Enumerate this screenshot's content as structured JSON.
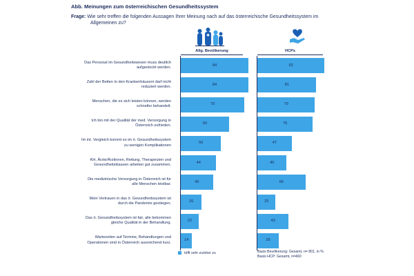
{
  "header": {
    "title": "Abb. Meinungen zum österreichischen Gesundheitssystem",
    "question_label": "Frage:",
    "question_line1": "Wie sehr treffen die folgenden Aussagen Ihrer Meinung nach auf das österreichische Gesundheitssystem im",
    "question_line2": "Allgemeinen zu?"
  },
  "chart_data": {
    "type": "bar",
    "orientation": "horizontal",
    "categories": [
      "Das Personal im Gesundheitswesen muss deutlich aufgestockt werden.",
      "Zahl der Betten in den Krankenhäusern darf nicht reduziert werden.",
      "Menschen, die es sich leisten können, werden schneller behandelt.",
      "Ich bin mit der Qualität der med. Versorgung in Österreich zufrieden.",
      "Im int. Vergleich kommt es im ö. Gesundheitssystem zu wenigen Komplikationen",
      "KH, Ärzte/Ärztinnen, Rettung, Therapeuten und Gesundheitsklassen arbeiten gut zusammen.",
      "Die medizinische Versorgung in Österreich ist für alle Menschen leistbar.",
      "Mein Vertrauen in das ö. Gesundheitssystem ist durch die Pandemie gestiegen.",
      "Das ö. Gesundheitssystem ist fair, alle bekommen gleiche Qualität in der Behandlung.",
      "Wartezeiten auf Termine, Behandlungen und Operationen sind in Österreich ausreichend kurz."
    ],
    "category_lines": [
      [
        "Das Personal im Gesundheitswesen muss deutlich",
        "aufgestockt werden."
      ],
      [
        "Zahl der Betten in den Krankenhäusern darf nicht",
        "reduziert werden."
      ],
      [
        "Menschen, die es sich leisten können, werden",
        "schneller behandelt."
      ],
      [
        "Ich bin mit der Qualität der med. Versorgung in",
        "Österreich zufrieden."
      ],
      [
        "Im int. Vergleich kommt es im ö. Gesundheitssystem",
        "zu wenigen Komplikationen"
      ],
      [
        "KH, Ärzte/Ärztinnen, Rettung, Therapeuten und",
        "Gesundheitsklassen arbeiten gut zusammen."
      ],
      [
        "Die medizinische Versorgung in Österreich ist für",
        "alle Menschen leistbar."
      ],
      [
        "Mein Vertrauen in das ö. Gesundheitssystem ist",
        "durch die Pandemie gestiegen."
      ],
      [
        "Das ö. Gesundheitssystem ist fair, alle bekommen",
        "gleiche Qualität in der Behandlung."
      ],
      [
        "Wartezeiten auf Termine, Behandlungen und",
        "Operationen sind in Österreich ausreichend kurz."
      ]
    ],
    "series": [
      {
        "name": "Allg. Bevölkerung",
        "values": [
          84,
          84,
          79,
          60,
          50,
          44,
          40,
          26,
          22,
          14
        ]
      },
      {
        "name": "HCPs",
        "values": [
          92,
          81,
          79,
          76,
          47,
          40,
          66,
          25,
          43,
          29
        ]
      }
    ],
    "xlim": [
      0,
      100
    ],
    "unit": "%",
    "legend": "trifft sehr zu/eher zu",
    "bar_color": "#3ea5e6"
  },
  "footer": {
    "basis_line1": "Basis Bevölkerung: Gesamt, n= 801, in %",
    "basis_line2": "Basis HCP: Gesamt, n=460"
  },
  "icons": {
    "population": "people-group-icon",
    "hcp": "heart-in-hand-icon"
  },
  "colors": {
    "text": "#1a2b5c",
    "bar": "#3ea5e6"
  }
}
